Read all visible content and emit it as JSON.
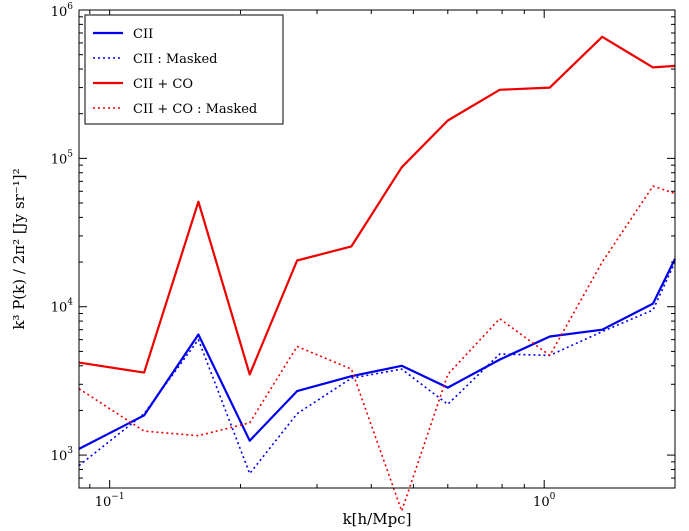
{
  "chart_data": {
    "type": "line",
    "title": "",
    "xlabel": "k[h/Mpc]",
    "ylabel": "k³ P(k) / 2π²  [Jy sr⁻¹]²",
    "xscale": "log",
    "yscale": "log",
    "xlim": [
      0.085,
      2.0
    ],
    "ylim": [
      600,
      1000000
    ],
    "x_ticks": [
      {
        "value": 0.1,
        "base": "10",
        "exp": "−1"
      },
      {
        "value": 1.0,
        "base": "10",
        "exp": "0"
      }
    ],
    "y_ticks": [
      {
        "value": 1000,
        "base": "10",
        "exp": "3"
      },
      {
        "value": 10000,
        "base": "10",
        "exp": "4"
      },
      {
        "value": 100000,
        "base": "10",
        "exp": "5"
      },
      {
        "value": 1000000,
        "base": "10",
        "exp": "6"
      }
    ],
    "grid": false,
    "legend_position": "top-left",
    "x": [
      0.085,
      0.12,
      0.16,
      0.21,
      0.27,
      0.36,
      0.47,
      0.6,
      0.79,
      1.03,
      1.36,
      1.78,
      2.0
    ],
    "series": [
      {
        "name": "CII",
        "color": "#0000ee",
        "dash": "solid",
        "values": [
          1100,
          1850,
          6500,
          1250,
          2700,
          3400,
          4000,
          2850,
          4400,
          6300,
          7000,
          10500,
          21000
        ]
      },
      {
        "name": "CII : Masked",
        "color": "#0000ee",
        "dash": "dotted",
        "values": [
          850,
          1900,
          6000,
          750,
          1900,
          3300,
          3800,
          2200,
          4800,
          4700,
          6800,
          9500,
          20000
        ]
      },
      {
        "name": "CII + CO",
        "color": "#ee0000",
        "dash": "solid",
        "values": [
          4200,
          3600,
          51000,
          3500,
          20500,
          25500,
          87000,
          180000,
          290000,
          300000,
          660000,
          410000,
          420000
        ]
      },
      {
        "name": "CII + CO : Masked",
        "color": "#ee0000",
        "dash": "dotted",
        "values": [
          2800,
          1450,
          1350,
          1650,
          5400,
          3800,
          420,
          3500,
          8300,
          4700,
          20000,
          65000,
          58000
        ]
      }
    ]
  }
}
